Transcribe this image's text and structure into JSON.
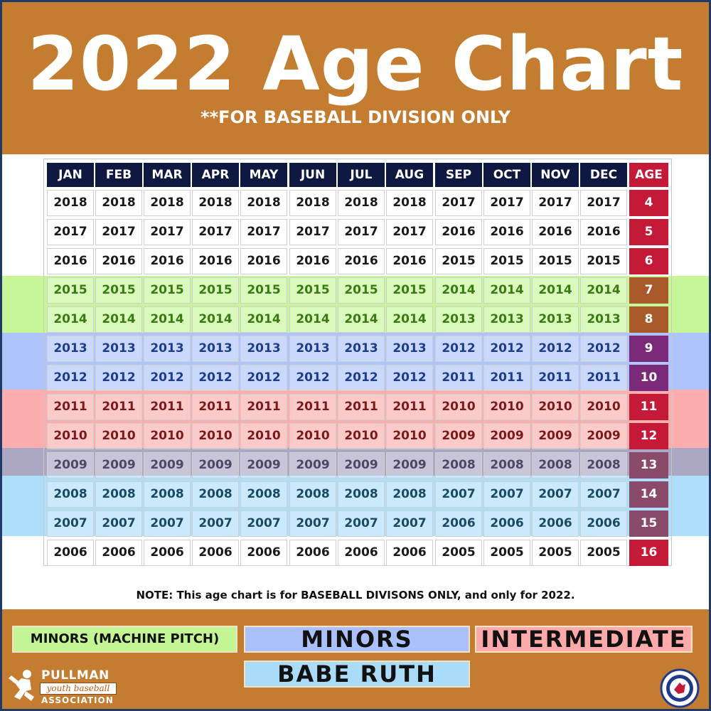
{
  "header": {
    "title": "2022 Age Chart",
    "subtitle": "**FOR BASEBALL DIVISION ONLY"
  },
  "table": {
    "months": [
      "JAN",
      "FEB",
      "MAR",
      "APR",
      "MAY",
      "JUN",
      "JUL",
      "AUG",
      "SEP",
      "OCT",
      "NOV",
      "DEC"
    ],
    "age_header": "AGE",
    "rows": [
      {
        "years": [
          "2018",
          "2018",
          "2018",
          "2018",
          "2018",
          "2018",
          "2018",
          "2018",
          "2017",
          "2017",
          "2017",
          "2017"
        ],
        "age": "4",
        "age_color": "#c41a38",
        "division": "none"
      },
      {
        "years": [
          "2017",
          "2017",
          "2017",
          "2017",
          "2017",
          "2017",
          "2017",
          "2017",
          "2016",
          "2016",
          "2016",
          "2016"
        ],
        "age": "5",
        "age_color": "#c41a38",
        "division": "none"
      },
      {
        "years": [
          "2016",
          "2016",
          "2016",
          "2016",
          "2016",
          "2016",
          "2016",
          "2016",
          "2015",
          "2015",
          "2015",
          "2015"
        ],
        "age": "6",
        "age_color": "#c41a38",
        "division": "none"
      },
      {
        "years": [
          "2015",
          "2015",
          "2015",
          "2015",
          "2015",
          "2015",
          "2015",
          "2015",
          "2014",
          "2014",
          "2014",
          "2014"
        ],
        "age": "7",
        "age_color": "#a85a2a",
        "division": "machine",
        "text_color": "#3a7a12"
      },
      {
        "years": [
          "2014",
          "2014",
          "2014",
          "2014",
          "2014",
          "2014",
          "2014",
          "2014",
          "2013",
          "2013",
          "2013",
          "2013"
        ],
        "age": "8",
        "age_color": "#a85a2a",
        "division": "machine",
        "text_color": "#3a7a12"
      },
      {
        "years": [
          "2013",
          "2013",
          "2013",
          "2013",
          "2013",
          "2013",
          "2013",
          "2013",
          "2012",
          "2012",
          "2012",
          "2012"
        ],
        "age": "9",
        "age_color": "#7b2a7a",
        "division": "minors",
        "text_color": "#1d3d8a"
      },
      {
        "years": [
          "2012",
          "2012",
          "2012",
          "2012",
          "2012",
          "2012",
          "2012",
          "2012",
          "2011",
          "2011",
          "2011",
          "2011"
        ],
        "age": "10",
        "age_color": "#7b2a7a",
        "division": "minors",
        "text_color": "#1d3d8a"
      },
      {
        "years": [
          "2011",
          "2011",
          "2011",
          "2011",
          "2011",
          "2011",
          "2011",
          "2011",
          "2010",
          "2010",
          "2010",
          "2010"
        ],
        "age": "11",
        "age_color": "#c41a38",
        "division": "intermediate",
        "text_color": "#7a1a1a"
      },
      {
        "years": [
          "2010",
          "2010",
          "2010",
          "2010",
          "2010",
          "2010",
          "2010",
          "2010",
          "2009",
          "2009",
          "2009",
          "2009"
        ],
        "age": "12",
        "age_color": "#c41a38",
        "division": "intermediate",
        "text_color": "#7a1a1a"
      },
      {
        "years": [
          "2009",
          "2009",
          "2009",
          "2009",
          "2009",
          "2009",
          "2009",
          "2009",
          "2008",
          "2008",
          "2008",
          "2008"
        ],
        "age": "13",
        "age_color": "#8a4a6a",
        "division": "overlap",
        "text_color": "#4a4a66"
      },
      {
        "years": [
          "2008",
          "2008",
          "2008",
          "2008",
          "2008",
          "2008",
          "2008",
          "2008",
          "2007",
          "2007",
          "2007",
          "2007"
        ],
        "age": "14",
        "age_color": "#8a4a6a",
        "division": "babe",
        "text_color": "#1a4a66"
      },
      {
        "years": [
          "2007",
          "2007",
          "2007",
          "2007",
          "2007",
          "2007",
          "2007",
          "2007",
          "2006",
          "2006",
          "2006",
          "2006"
        ],
        "age": "15",
        "age_color": "#8a4a6a",
        "division": "babe",
        "text_color": "#1a4a66"
      },
      {
        "years": [
          "2006",
          "2006",
          "2006",
          "2006",
          "2006",
          "2006",
          "2006",
          "2006",
          "2005",
          "2005",
          "2005",
          "2005"
        ],
        "age": "16",
        "age_color": "#c41a38",
        "division": "none",
        "text_color": "#1a1a1a"
      }
    ]
  },
  "note": "NOTE: This age chart is for BASEBALL DIVISONS ONLY, and only for 2022.",
  "legend": {
    "machine": "MINORS (MACHINE PITCH)",
    "minors": "MINORS",
    "intermediate": "INTERMEDIATE",
    "babe_ruth": "BABE RUTH"
  },
  "logo": {
    "top": "PULLMAN",
    "middle": "youth baseball",
    "bottom": "ASSOCIATION",
    "icon": "baseball-player-icon"
  },
  "little_league_logo": {
    "icon": "little-league-baseball-logo"
  }
}
